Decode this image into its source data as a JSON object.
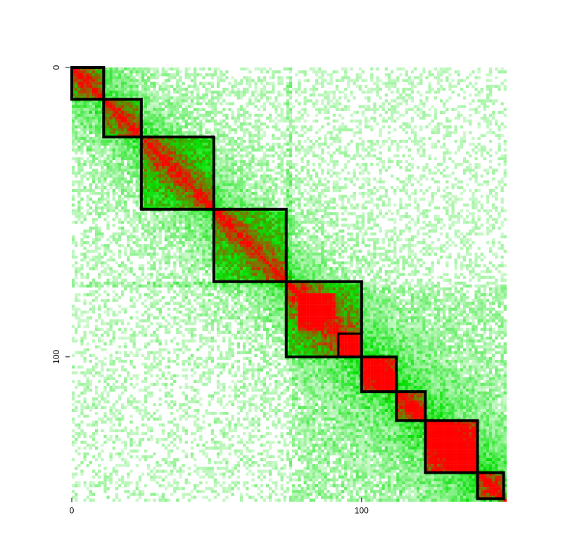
{
  "chart_data": {
    "type": "heatmap",
    "title": "",
    "xlabel": "",
    "ylabel": "",
    "n_bins": 150,
    "xlim": [
      0,
      150
    ],
    "ylim": [
      0,
      148
    ],
    "x_ticks": [
      {
        "value": 0,
        "label": "0"
      },
      {
        "value": 100,
        "label": "100"
      }
    ],
    "y_ticks": [
      {
        "value": 0,
        "label": "0"
      },
      {
        "value": 100,
        "label": "100"
      }
    ],
    "y_axis_inverted": true,
    "color_scale": {
      "low": "#ffffff",
      "mid": "#00e000",
      "high": "#ff0000"
    },
    "domains": [
      {
        "start": 0,
        "end": 11
      },
      {
        "start": 11,
        "end": 24
      },
      {
        "start": 24,
        "end": 49
      },
      {
        "start": 49,
        "end": 74
      },
      {
        "start": 74,
        "end": 100
      },
      {
        "start": 100,
        "end": 112
      },
      {
        "start": 112,
        "end": 122
      },
      {
        "start": 122,
        "end": 140
      },
      {
        "start": 140,
        "end": 149
      }
    ],
    "sub_domains": [
      {
        "start": 92,
        "end": 100
      }
    ],
    "domain_outline_color": "#000000"
  }
}
